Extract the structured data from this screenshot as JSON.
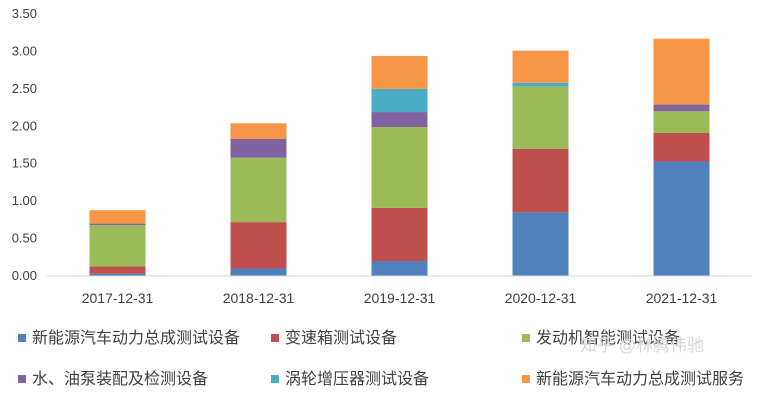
{
  "chart_data": {
    "type": "bar",
    "stacked": true,
    "categories": [
      "2017-12-31",
      "2018-12-31",
      "2019-12-31",
      "2020-12-31",
      "2021-12-31"
    ],
    "ylim": [
      0,
      3.5
    ],
    "yticks": [
      "0.00",
      "0.50",
      "1.00",
      "1.50",
      "2.00",
      "2.50",
      "3.00",
      "3.50"
    ],
    "grid": false,
    "legend_position": "bottom",
    "series": [
      {
        "name": "新能源汽车动力总成测试设备",
        "color": "#4f81bd",
        "values": [
          0.03,
          0.1,
          0.2,
          0.85,
          1.53
        ]
      },
      {
        "name": "变速箱测试设备",
        "color": "#c0504d",
        "values": [
          0.1,
          0.62,
          0.71,
          0.85,
          0.38
        ]
      },
      {
        "name": "发动机智能测试设备",
        "color": "#9bbb59",
        "values": [
          0.55,
          0.86,
          1.08,
          0.83,
          0.29
        ]
      },
      {
        "name": "水、油泵装配及检测设备",
        "color": "#8064a2",
        "values": [
          0.02,
          0.25,
          0.2,
          0.0,
          0.09
        ]
      },
      {
        "name": "涡轮增压器测试设备",
        "color": "#4bacc6",
        "values": [
          0.0,
          0.0,
          0.31,
          0.05,
          0.0
        ]
      },
      {
        "name": "新能源汽车动力总成测试服务",
        "color": "#f79646",
        "values": [
          0.18,
          0.21,
          0.44,
          0.43,
          0.88
        ]
      }
    ]
  },
  "watermark": "知乎 @林腾伟驰"
}
